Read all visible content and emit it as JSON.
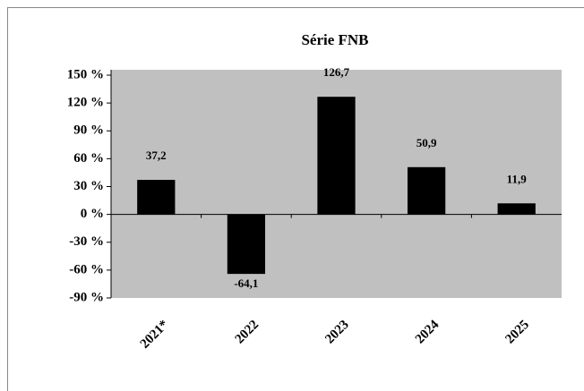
{
  "chart_data": {
    "type": "bar",
    "title": "Série FNB",
    "categories": [
      "2021*",
      "2022",
      "2023",
      "2024",
      "2025"
    ],
    "values": [
      37.2,
      -64.1,
      126.7,
      50.9,
      11.9
    ],
    "value_labels": [
      "37,2",
      "-64,1",
      "126,7",
      "50,9",
      "11,9"
    ],
    "color": "#000000",
    "ylim": [
      -90,
      150
    ],
    "yticks": [
      {
        "value": -90,
        "label": "-90 %"
      },
      {
        "value": -60,
        "label": "-60 %"
      },
      {
        "value": -30,
        "label": "-30 %"
      },
      {
        "value": 0,
        "label": "0 %"
      },
      {
        "value": 30,
        "label": "30 %"
      },
      {
        "value": 60,
        "label": "60 %"
      },
      {
        "value": 90,
        "label": "90 %"
      },
      {
        "value": 120,
        "label": "120 %"
      },
      {
        "value": 150,
        "label": "150 %"
      }
    ],
    "grid": false
  }
}
